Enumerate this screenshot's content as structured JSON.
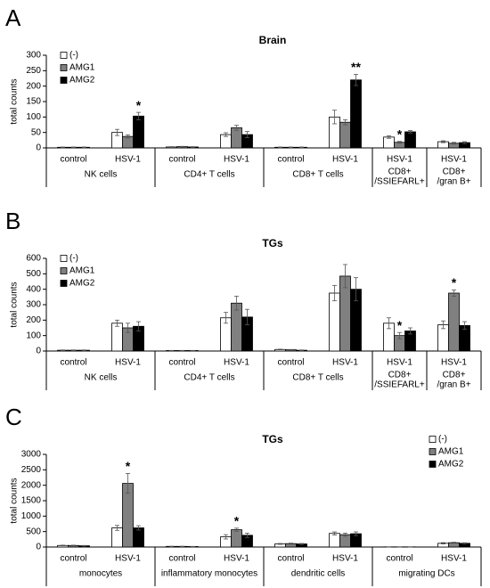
{
  "chart_data": [
    {
      "type": "bar",
      "panel": "A",
      "title": "Brain",
      "y_label": "total counts",
      "legend": "upper left",
      "ylim": [
        0,
        300
      ],
      "yticks": [
        0,
        50,
        100,
        150,
        200,
        250,
        300
      ],
      "groups": [
        {
          "name": "NK cells",
          "categories": [
            "control",
            "HSV-1"
          ]
        },
        {
          "name": "CD4+ T cells",
          "categories": [
            "control",
            "HSV-1"
          ]
        },
        {
          "name": "CD8+ T cells",
          "categories": [
            "control",
            "HSV-1"
          ]
        },
        {
          "name": [
            "CD8+",
            "/SSIEFARL+"
          ],
          "categories": [
            "HSV-1"
          ]
        },
        {
          "name": [
            "CD8+",
            "/gran B+"
          ],
          "categories": [
            "HSV-1"
          ]
        }
      ],
      "series": [
        {
          "name": "(-)",
          "color": "#ffffff",
          "values": [
            2,
            50,
            3,
            43,
            2,
            100,
            35,
            20
          ],
          "errors": [
            1,
            10,
            1,
            6,
            1,
            22,
            4,
            3
          ],
          "value_annotations": [
            null,
            null,
            null,
            null,
            null,
            null,
            null,
            null
          ]
        },
        {
          "name": "AMG1",
          "color": "#808080",
          "values": [
            2,
            37,
            4,
            65,
            2,
            83,
            18,
            15
          ],
          "errors": [
            1,
            5,
            1,
            8,
            1,
            8,
            3,
            3
          ],
          "value_annotations": [
            null,
            null,
            null,
            null,
            null,
            null,
            "*",
            null
          ]
        },
        {
          "name": "AMG2",
          "color": "#000000",
          "values": [
            2,
            103,
            3,
            43,
            2,
            220,
            52,
            17
          ],
          "errors": [
            1,
            12,
            1,
            10,
            1,
            18,
            4,
            3
          ],
          "value_annotations": [
            null,
            "*",
            null,
            null,
            null,
            "**",
            null,
            null
          ]
        }
      ]
    },
    {
      "type": "bar",
      "panel": "B",
      "title": "TGs",
      "y_label": "total counts",
      "legend": "upper left",
      "ylim": [
        0,
        600
      ],
      "yticks": [
        0,
        100,
        200,
        300,
        400,
        500,
        600
      ],
      "groups": [
        {
          "name": "NK cells",
          "categories": [
            "control",
            "HSV-1"
          ]
        },
        {
          "name": "CD4+ T cells",
          "categories": [
            "control",
            "HSV-1"
          ]
        },
        {
          "name": "CD8+ T cells",
          "categories": [
            "control",
            "HSV-1"
          ]
        },
        {
          "name": [
            "CD8+",
            "/SSIEFARL+"
          ],
          "categories": [
            "HSV-1"
          ]
        },
        {
          "name": [
            "CD8+",
            "/gran B+"
          ],
          "categories": [
            "HSV-1"
          ]
        }
      ],
      "series": [
        {
          "name": "(-)",
          "color": "#ffffff",
          "values": [
            5,
            180,
            3,
            215,
            10,
            375,
            180,
            170
          ],
          "errors": [
            2,
            20,
            1,
            35,
            2,
            50,
            35,
            25
          ],
          "value_annotations": [
            null,
            null,
            null,
            null,
            null,
            null,
            null,
            null
          ]
        },
        {
          "name": "AMG1",
          "color": "#808080",
          "values": [
            5,
            150,
            3,
            310,
            8,
            485,
            100,
            375
          ],
          "errors": [
            2,
            30,
            1,
            45,
            2,
            75,
            20,
            20
          ],
          "value_annotations": [
            null,
            null,
            null,
            null,
            null,
            null,
            "*",
            "*"
          ]
        },
        {
          "name": "AMG2",
          "color": "#000000",
          "values": [
            5,
            160,
            3,
            220,
            5,
            400,
            130,
            165
          ],
          "errors": [
            2,
            30,
            1,
            50,
            2,
            75,
            20,
            25
          ],
          "value_annotations": [
            null,
            null,
            null,
            null,
            null,
            null,
            null,
            null
          ]
        }
      ]
    },
    {
      "type": "bar",
      "panel": "C",
      "title": "TGs",
      "y_label": "total counts",
      "legend": "upper right",
      "ylim": [
        0,
        3000
      ],
      "yticks": [
        0,
        500,
        1000,
        1500,
        2000,
        2500,
        3000
      ],
      "groups": [
        {
          "name": "monocytes",
          "categories": [
            "control",
            "HSV-1"
          ]
        },
        {
          "name": "inflammatory monocytes",
          "categories": [
            "control",
            "HSV-1"
          ]
        },
        {
          "name": "dendritic cells",
          "categories": [
            "control",
            "HSV-1"
          ]
        },
        {
          "name": "migrating DCs",
          "categories": [
            "control",
            "HSV-1"
          ]
        }
      ],
      "series": [
        {
          "name": "(-)",
          "color": "#ffffff",
          "values": [
            50,
            620,
            20,
            330,
            100,
            440,
            5,
            120
          ],
          "errors": [
            10,
            80,
            5,
            70,
            15,
            50,
            2,
            20
          ],
          "value_annotations": [
            null,
            null,
            null,
            null,
            null,
            null,
            null,
            null
          ]
        },
        {
          "name": "AMG1",
          "color": "#808080",
          "values": [
            50,
            2060,
            20,
            560,
            110,
            400,
            5,
            140
          ],
          "errors": [
            10,
            320,
            5,
            50,
            15,
            50,
            2,
            15
          ],
          "value_annotations": [
            null,
            "*",
            null,
            "*",
            null,
            null,
            null,
            null
          ]
        },
        {
          "name": "AMG2",
          "color": "#000000",
          "values": [
            40,
            620,
            15,
            380,
            100,
            430,
            5,
            120
          ],
          "errors": [
            10,
            70,
            5,
            70,
            15,
            60,
            2,
            15
          ],
          "value_annotations": [
            null,
            null,
            null,
            null,
            null,
            null,
            null,
            null
          ]
        }
      ]
    }
  ]
}
